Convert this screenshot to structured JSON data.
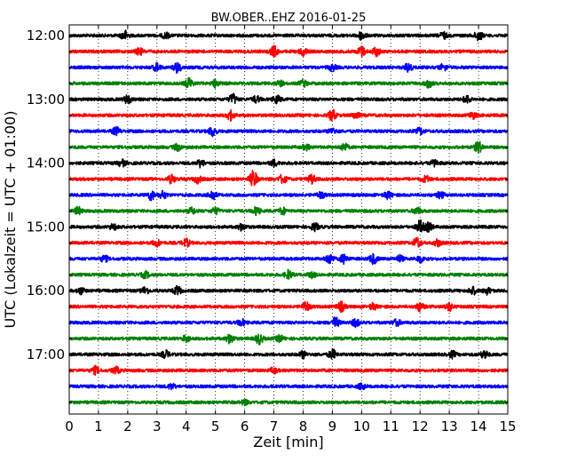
{
  "chart_data": {
    "type": "line",
    "title": "BW.OBER..EHZ 2016-01-25",
    "xlabel": "Zeit  [min]",
    "ylabel": "UTC (Lokalzeit = UTC + 01:00)",
    "xlim": [
      0,
      15
    ],
    "x_ticks": [
      0,
      1,
      2,
      3,
      4,
      5,
      6,
      7,
      8,
      9,
      10,
      11,
      12,
      13,
      14,
      15
    ],
    "x_tick_labels": [
      "0",
      "1",
      "2",
      "3",
      "4",
      "5",
      "6",
      "7",
      "8",
      "9",
      "10",
      "11",
      "12",
      "13",
      "14",
      "15"
    ],
    "y_tick_labels": [
      "12:00",
      "13:00",
      "14:00",
      "15:00",
      "16:00",
      "17:00"
    ],
    "y_tick_rows": [
      0,
      4,
      8,
      12,
      16,
      20
    ],
    "grid": "vertical dotted",
    "row_count": 24,
    "color_cycle": [
      "#000000",
      "#ff0000",
      "#0000ff",
      "#008000"
    ],
    "series": [
      {
        "bursts": [
          [
            1.9,
            0.9
          ],
          [
            3.3,
            0.5
          ],
          [
            10.0,
            0.8
          ],
          [
            12.8,
            0.6
          ],
          [
            14.0,
            1.0
          ]
        ]
      },
      {
        "bursts": [
          [
            2.4,
            0.6
          ],
          [
            7.0,
            1.0
          ],
          [
            8.0,
            0.7
          ],
          [
            10.0,
            1.0
          ],
          [
            10.5,
            0.8
          ]
        ]
      },
      {
        "bursts": [
          [
            3.0,
            0.7
          ],
          [
            3.7,
            1.0
          ],
          [
            9.0,
            0.6
          ],
          [
            11.6,
            0.8
          ],
          [
            12.8,
            0.6
          ]
        ]
      },
      {
        "bursts": [
          [
            4.1,
            1.0
          ],
          [
            5.0,
            0.7
          ],
          [
            7.2,
            0.5
          ],
          [
            8.0,
            0.6
          ],
          [
            12.3,
            0.8
          ]
        ]
      },
      {
        "bursts": [
          [
            2.0,
            0.8
          ],
          [
            5.6,
            1.0
          ],
          [
            6.4,
            0.6
          ],
          [
            7.1,
            0.7
          ],
          [
            13.6,
            0.7
          ]
        ]
      },
      {
        "bursts": [
          [
            5.5,
            0.9
          ],
          [
            9.0,
            1.0
          ],
          [
            9.8,
            0.6
          ],
          [
            13.8,
            0.6
          ]
        ]
      },
      {
        "bursts": [
          [
            1.6,
            0.7
          ],
          [
            4.9,
            0.9
          ],
          [
            9.0,
            0.5
          ],
          [
            12.0,
            0.6
          ]
        ]
      },
      {
        "bursts": [
          [
            3.7,
            0.6
          ],
          [
            9.4,
            0.7
          ],
          [
            14.0,
            1.1
          ],
          [
            8.1,
            0.5
          ]
        ]
      },
      {
        "bursts": [
          [
            1.8,
            0.6
          ],
          [
            4.5,
            0.7
          ],
          [
            7.0,
            0.6
          ],
          [
            12.5,
            0.6
          ]
        ]
      },
      {
        "bursts": [
          [
            3.5,
            0.8
          ],
          [
            4.4,
            0.7
          ],
          [
            6.3,
            1.6
          ],
          [
            7.3,
            0.8
          ],
          [
            8.3,
            0.8
          ],
          [
            12.2,
            0.6
          ]
        ]
      },
      {
        "bursts": [
          [
            2.8,
            0.9
          ],
          [
            3.2,
            0.7
          ],
          [
            4.9,
            0.9
          ],
          [
            8.6,
            0.6
          ],
          [
            10.9,
            0.7
          ],
          [
            12.7,
            0.6
          ]
        ]
      },
      {
        "bursts": [
          [
            0.3,
            0.7
          ],
          [
            4.2,
            0.6
          ],
          [
            5.0,
            0.6
          ],
          [
            6.4,
            0.7
          ],
          [
            7.3,
            0.6
          ],
          [
            11.9,
            0.6
          ]
        ]
      },
      {
        "bursts": [
          [
            1.5,
            0.5
          ],
          [
            5.9,
            0.6
          ],
          [
            8.4,
            0.7
          ],
          [
            12.0,
            1.2
          ],
          [
            12.3,
            0.8
          ]
        ]
      },
      {
        "bursts": [
          [
            3.0,
            0.6
          ],
          [
            4.0,
            0.7
          ],
          [
            11.9,
            1.0
          ],
          [
            12.6,
            0.6
          ]
        ]
      },
      {
        "bursts": [
          [
            1.2,
            0.6
          ],
          [
            8.9,
            1.0
          ],
          [
            9.4,
            0.9
          ],
          [
            10.4,
            0.9
          ],
          [
            11.3,
            0.6
          ],
          [
            12.0,
            0.6
          ]
        ]
      },
      {
        "bursts": [
          [
            2.6,
            0.6
          ],
          [
            7.5,
            0.8
          ],
          [
            8.3,
            0.5
          ]
        ]
      },
      {
        "bursts": [
          [
            0.4,
            0.6
          ],
          [
            2.6,
            0.7
          ],
          [
            3.7,
            0.8
          ],
          [
            13.8,
            0.7
          ],
          [
            14.3,
            0.6
          ]
        ]
      },
      {
        "bursts": [
          [
            8.1,
            1.0
          ],
          [
            9.3,
            0.9
          ],
          [
            10.4,
            0.6
          ],
          [
            12.0,
            0.8
          ],
          [
            13.0,
            0.8
          ]
        ]
      },
      {
        "bursts": [
          [
            5.9,
            0.6
          ],
          [
            9.1,
            1.0
          ],
          [
            9.8,
            0.7
          ],
          [
            11.2,
            0.6
          ]
        ]
      },
      {
        "bursts": [
          [
            4.0,
            0.6
          ],
          [
            5.5,
            0.9
          ],
          [
            6.5,
            1.0
          ],
          [
            7.2,
            0.6
          ]
        ]
      },
      {
        "bursts": [
          [
            3.3,
            0.7
          ],
          [
            8.0,
            0.6
          ],
          [
            9.0,
            0.9
          ],
          [
            13.1,
            0.6
          ],
          [
            14.2,
            0.8
          ]
        ]
      },
      {
        "bursts": [
          [
            0.9,
            0.7
          ],
          [
            1.6,
            0.6
          ],
          [
            7.0,
            0.5
          ]
        ]
      },
      {
        "bursts": [
          [
            3.5,
            0.5
          ],
          [
            10.0,
            0.5
          ]
        ]
      },
      {
        "bursts": [
          [
            6.0,
            0.4
          ]
        ]
      }
    ]
  }
}
